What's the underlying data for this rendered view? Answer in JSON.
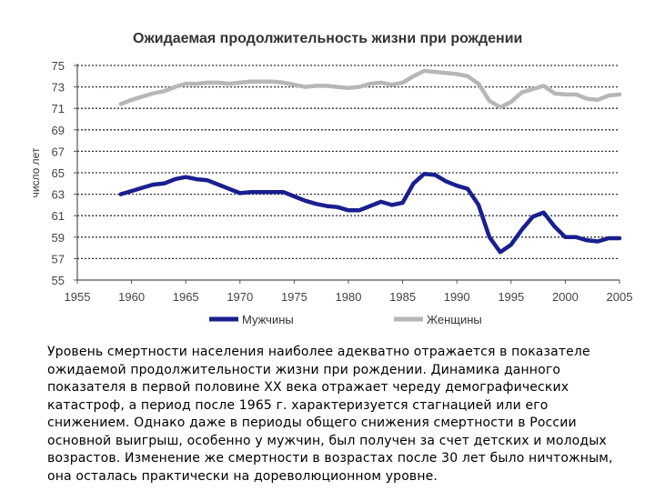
{
  "chart_data": {
    "type": "line",
    "title": "Ожидаемая продолжительность жизни при рождении",
    "xlabel": "",
    "ylabel": "число лет",
    "xlim": [
      1955,
      2005
    ],
    "ylim": [
      55,
      75
    ],
    "x_ticks": [
      "1955",
      "1960",
      "1965",
      "1970",
      "1975",
      "1980",
      "1985",
      "1990",
      "1995",
      "2000",
      "2005"
    ],
    "y_ticks": [
      "55",
      "57",
      "59",
      "61",
      "63",
      "65",
      "67",
      "69",
      "71",
      "73",
      "75"
    ],
    "grid": "horizontal dotted",
    "legend": "bottom",
    "series": [
      {
        "name": "Мужчины",
        "color": "#1a1f8f",
        "x": [
          1959,
          1960,
          1961,
          1962,
          1963,
          1964,
          1965,
          1966,
          1967,
          1968,
          1969,
          1970,
          1971,
          1972,
          1973,
          1974,
          1975,
          1976,
          1977,
          1978,
          1979,
          1980,
          1981,
          1982,
          1983,
          1984,
          1985,
          1986,
          1987,
          1988,
          1989,
          1990,
          1991,
          1992,
          1993,
          1994,
          1995,
          1996,
          1997,
          1998,
          1999,
          2000,
          2001,
          2002,
          2003,
          2004,
          2005
        ],
        "y": [
          63.0,
          63.3,
          63.6,
          63.9,
          64.0,
          64.4,
          64.6,
          64.4,
          64.3,
          63.9,
          63.5,
          63.1,
          63.2,
          63.2,
          63.2,
          63.2,
          62.8,
          62.4,
          62.1,
          61.9,
          61.8,
          61.5,
          61.5,
          61.9,
          62.3,
          62.0,
          62.2,
          64.0,
          64.9,
          64.8,
          64.2,
          63.8,
          63.5,
          62.0,
          59.0,
          57.6,
          58.3,
          59.7,
          60.9,
          61.3,
          60.0,
          59.0,
          59.0,
          58.7,
          58.6,
          58.9,
          58.9
        ]
      },
      {
        "name": "Женщины",
        "color": "#b7b7b7",
        "x": [
          1959,
          1960,
          1961,
          1962,
          1963,
          1964,
          1965,
          1966,
          1967,
          1968,
          1969,
          1970,
          1971,
          1972,
          1973,
          1974,
          1975,
          1976,
          1977,
          1978,
          1979,
          1980,
          1981,
          1982,
          1983,
          1984,
          1985,
          1986,
          1987,
          1988,
          1989,
          1990,
          1991,
          1992,
          1993,
          1994,
          1995,
          1996,
          1997,
          1998,
          1999,
          2000,
          2001,
          2002,
          2003,
          2004,
          2005
        ],
        "y": [
          71.4,
          71.8,
          72.1,
          72.4,
          72.6,
          73.0,
          73.3,
          73.3,
          73.4,
          73.4,
          73.3,
          73.4,
          73.5,
          73.5,
          73.5,
          73.4,
          73.2,
          73.0,
          73.1,
          73.1,
          73.0,
          72.9,
          73.0,
          73.3,
          73.4,
          73.2,
          73.4,
          74.0,
          74.5,
          74.4,
          74.3,
          74.2,
          74.0,
          73.3,
          71.7,
          71.1,
          71.6,
          72.5,
          72.8,
          73.1,
          72.4,
          72.3,
          72.3,
          71.9,
          71.8,
          72.2,
          72.3
        ]
      }
    ]
  },
  "caption": "Уровень смертности населения наиболее адекватно отражается в показателе ожидаемой продолжительности жизни при рождении. Динамика данного показателя в первой половине XX века отражает череду демографических катастроф, а период после 1965 г. характеризуется стагнацией или его снижением. Однако даже в периоды общего снижения смертности в России основной выигрыш, особенно у мужчин, был получен за счет детских и молодых возрастов. Изменение же смертности в возрастах после 30 лет было ничтожным, она осталась практически на дореволюционном уровне."
}
